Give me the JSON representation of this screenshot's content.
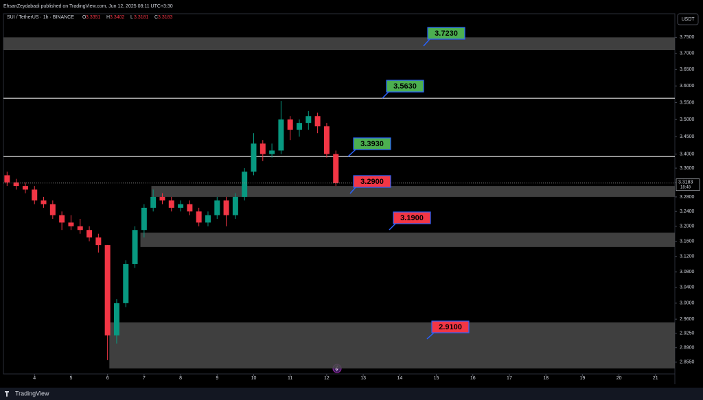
{
  "header": {
    "publisher": "EhsanZeydabadi published on TradingView.com, Jun 12, 2025 08:11 UTC+3:30"
  },
  "chart_data": {
    "type": "candlestick",
    "title": "SUI / TetherUS · 1h · BINANCE",
    "ohlc": [
      {
        "label": "O",
        "value": "3.3351"
      },
      {
        "label": "H",
        "value": "3.3402"
      },
      {
        "label": "L",
        "value": "3.3181"
      },
      {
        "label": "C",
        "value": "3.3183"
      }
    ],
    "currency": "USDT",
    "x": [
      3.25,
      3.5,
      3.75,
      4.0,
      4.25,
      4.5,
      4.75,
      5.0,
      5.25,
      5.5,
      5.75,
      6.0,
      6.25,
      6.5,
      6.75,
      7.0,
      7.25,
      7.5,
      7.75,
      8.0,
      8.25,
      8.5,
      8.75,
      9.0,
      9.25,
      9.5,
      9.75,
      10.0,
      10.25,
      10.5,
      10.75,
      11.0,
      11.25,
      11.5,
      11.75,
      12.0,
      12.25
    ],
    "open": [
      3.34,
      3.32,
      3.31,
      3.3,
      3.27,
      3.26,
      3.23,
      3.21,
      3.2,
      3.19,
      3.17,
      3.15,
      2.92,
      3.0,
      3.1,
      3.19,
      3.25,
      3.28,
      3.27,
      3.25,
      3.26,
      3.24,
      3.21,
      3.23,
      3.27,
      3.23,
      3.28,
      3.35,
      3.43,
      3.4,
      3.41,
      3.5,
      3.47,
      3.49,
      3.51,
      3.48,
      3.4
    ],
    "high": [
      3.35,
      3.33,
      3.32,
      3.31,
      3.28,
      3.27,
      3.24,
      3.23,
      3.22,
      3.2,
      3.18,
      3.15,
      3.01,
      3.11,
      3.2,
      3.26,
      3.3,
      3.29,
      3.28,
      3.27,
      3.27,
      3.25,
      3.24,
      3.28,
      3.28,
      3.29,
      3.36,
      3.46,
      3.44,
      3.43,
      3.555,
      3.51,
      3.5,
      3.525,
      3.52,
      3.49,
      3.41
    ],
    "low": [
      3.31,
      3.3,
      3.29,
      3.26,
      3.25,
      3.22,
      3.19,
      3.19,
      3.18,
      3.16,
      3.13,
      2.86,
      2.9,
      2.99,
      3.09,
      3.17,
      3.24,
      3.26,
      3.24,
      3.24,
      3.23,
      3.2,
      3.2,
      3.22,
      3.2,
      3.22,
      3.27,
      3.34,
      3.38,
      3.39,
      3.4,
      3.44,
      3.45,
      3.47,
      3.46,
      3.39,
      3.31
    ],
    "close": [
      3.32,
      3.31,
      3.3,
      3.27,
      3.26,
      3.23,
      3.21,
      3.2,
      3.19,
      3.17,
      3.15,
      2.92,
      3.0,
      3.1,
      3.19,
      3.25,
      3.28,
      3.27,
      3.25,
      3.26,
      3.24,
      3.21,
      3.23,
      3.27,
      3.23,
      3.28,
      3.35,
      3.43,
      3.4,
      3.41,
      3.5,
      3.47,
      3.49,
      3.51,
      3.48,
      3.4,
      3.318
    ],
    "up_color": "#089981",
    "down_color": "#f23645",
    "xlim": [
      3.15,
      21.53
    ],
    "xticks": [
      4,
      5,
      6,
      7,
      8,
      9,
      10,
      11,
      12,
      13,
      14,
      15,
      16,
      17,
      18,
      19,
      20,
      21
    ],
    "ylim": [
      2.827,
      3.825
    ],
    "log_scale": true,
    "yticks": [
      {
        "value": 3.75,
        "label": "3.7500"
      },
      {
        "value": 3.7,
        "label": "3.7000"
      },
      {
        "value": 3.65,
        "label": "3.6500"
      },
      {
        "value": 3.6,
        "label": "3.6000"
      },
      {
        "value": 3.55,
        "label": "3.5500"
      },
      {
        "value": 3.5,
        "label": "3.5000"
      },
      {
        "value": 3.45,
        "label": "3.4500"
      },
      {
        "value": 3.4,
        "label": "3.4000"
      },
      {
        "value": 3.36,
        "label": "3.3600"
      },
      {
        "value": 3.32,
        "label": "3.3200"
      },
      {
        "value": 3.28,
        "label": "3.2800"
      },
      {
        "value": 3.24,
        "label": "3.2400"
      },
      {
        "value": 3.2,
        "label": "3.2000"
      },
      {
        "value": 3.16,
        "label": "3.1600"
      },
      {
        "value": 3.12,
        "label": "3.1200"
      },
      {
        "value": 3.08,
        "label": "3.0800"
      },
      {
        "value": 3.04,
        "label": "3.0400"
      },
      {
        "value": 3.0,
        "label": "3.0000"
      },
      {
        "value": 2.96,
        "label": "2.9600"
      },
      {
        "value": 2.925,
        "label": "2.9250"
      },
      {
        "value": 2.89,
        "label": "2.8900"
      },
      {
        "value": 2.855,
        "label": "2.8550"
      }
    ],
    "last_price": 3.3183,
    "countdown": "18:48",
    "levels": [
      3.563,
      3.393
    ],
    "zones": [
      {
        "from": 3.15,
        "range": [
          3.71,
          3.75
        ]
      },
      {
        "from": 7.2,
        "range": [
          3.28,
          3.31
        ]
      },
      {
        "from": 6.9,
        "range": [
          3.145,
          3.183
        ]
      },
      {
        "from": 6.05,
        "range": [
          2.84,
          2.952
        ]
      }
    ],
    "annotations": [
      {
        "label": "3.7230",
        "color": "#4caf50"
      },
      {
        "label": "3.5630",
        "color": "#4caf50"
      },
      {
        "label": "3.3930",
        "color": "#4caf50"
      },
      {
        "label": "3.2900",
        "color": "#f23645"
      },
      {
        "label": "3.1900",
        "color": "#f23645"
      },
      {
        "label": "2.9100",
        "color": "#f23645"
      }
    ]
  },
  "footer": {
    "brand": "TradingView"
  }
}
